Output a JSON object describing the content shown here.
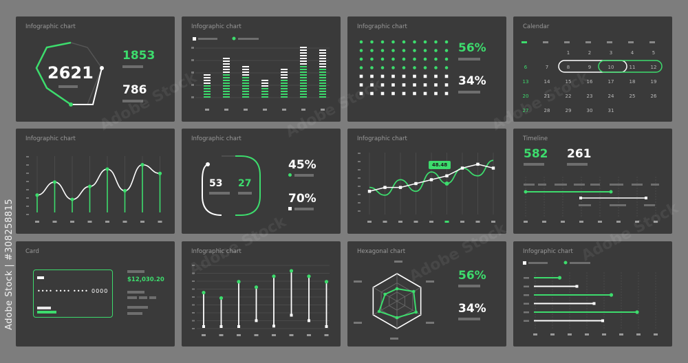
{
  "watermark": {
    "brand": "Adobe Stock",
    "id_text": "Adobe Stock | #308258815"
  },
  "colors": {
    "green": "#3ddc6d",
    "white": "#ffffff",
    "card": "#3a3a3a",
    "page": "#7d7d7d"
  },
  "card1": {
    "title": "Infographic chart",
    "main": "2621",
    "stat1": "1853",
    "stat2": "786"
  },
  "card2": {
    "title": "Infographic chart",
    "chart_data": {
      "type": "bar",
      "series": [
        {
          "values": [
            7,
            11,
            9,
            5,
            8,
            14,
            13
          ]
        },
        {
          "values": [
            4,
            7,
            6,
            3,
            5,
            9,
            8
          ]
        }
      ],
      "ylim": [
        0,
        15
      ]
    }
  },
  "card3": {
    "title": "Infographic chart",
    "stat1": "56%",
    "stat2": "34%"
  },
  "card4": {
    "title": "Calendar",
    "weeks": [
      [
        "",
        "",
        "1",
        "2",
        "3",
        "4",
        "5"
      ],
      [
        "6",
        "7",
        "8",
        "9",
        "10",
        "11",
        "12"
      ],
      [
        "13",
        "14",
        "15",
        "16",
        "17",
        "18",
        "19"
      ],
      [
        "20",
        "21",
        "22",
        "23",
        "24",
        "25",
        "26"
      ],
      [
        "27",
        "28",
        "29",
        "30",
        "31",
        "",
        ""
      ]
    ]
  },
  "card5": {
    "title": "Infographic chart",
    "chart_data": {
      "type": "line",
      "series": [
        {
          "values": [
            4,
            7,
            3,
            6,
            10,
            5,
            11,
            9
          ]
        }
      ],
      "ylim": [
        0,
        13
      ]
    }
  },
  "card6": {
    "title": "Infographic chart",
    "left": "53",
    "right": "27",
    "stat1": "45%",
    "stat2": "70%"
  },
  "card7": {
    "title": "Infographic chart",
    "tooltip": "48.48",
    "chart_data": {
      "type": "line",
      "series": [
        {
          "values": [
            6,
            7,
            7,
            8,
            9,
            10,
            12,
            13,
            12
          ]
        },
        {
          "values": [
            7,
            5,
            9,
            6,
            11,
            8,
            12,
            10,
            14
          ]
        }
      ],
      "ylim": [
        0,
        16
      ]
    }
  },
  "card8": {
    "title": "Timeline",
    "stat1": "582",
    "stat2": "261"
  },
  "card9": {
    "title": "Card",
    "balance": "$12,030.20",
    "dots": [
      "••••",
      "••••",
      "••••",
      "0000"
    ]
  },
  "card10": {
    "title": "Infographic chart",
    "chart_data": {
      "type": "bar",
      "series": [
        {
          "values": [
            7,
            6,
            9,
            8,
            10,
            11,
            10,
            9
          ]
        }
      ],
      "ylim": [
        0,
        12
      ]
    }
  },
  "card11": {
    "title": "Hexagonal chart",
    "stat1": "56%",
    "stat2": "34%"
  },
  "card12": {
    "title": "Infographic chart",
    "chart_data": {
      "type": "bar",
      "series": [
        {
          "values": [
            3,
            5,
            9,
            7,
            12,
            8
          ]
        }
      ],
      "ylim": [
        0,
        14
      ]
    }
  }
}
